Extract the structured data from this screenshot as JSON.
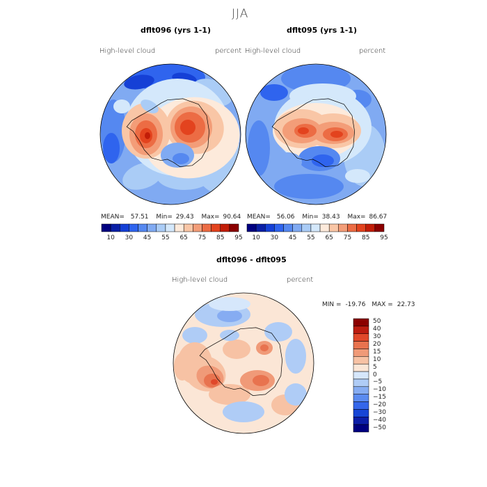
{
  "title": "JJA",
  "colors": {
    "abs_scale": [
      "#000080",
      "#0a1fa6",
      "#1540d6",
      "#2f64ee",
      "#5588f0",
      "#80aaf2",
      "#aaccf6",
      "#d4e8fb",
      "#fdeadb",
      "#f9c6a6",
      "#f39d78",
      "#ec6c44",
      "#e3431e",
      "#c21d08",
      "#8b0000"
    ],
    "diff_scale": [
      "#000080",
      "#0c1ea8",
      "#1746d6",
      "#3466ea",
      "#5b8bf0",
      "#86acf2",
      "#afccf6",
      "#d6e7fb",
      "#fbe6d6",
      "#f7c2a4",
      "#f09a78",
      "#e8734f",
      "#e0482a",
      "#bc1c10",
      "#8b0000"
    ]
  },
  "chart_data": [
    {
      "type": "heatmap",
      "panel": "left",
      "title": "dflt096 (yrs 1-1)",
      "variable": "High-level  cloud",
      "units": "percent",
      "stats": {
        "mean_label": "MEAN=",
        "mean": "57.51",
        "min_label": "Min=",
        "min": "29.43",
        "max_label": "Max=",
        "max": "90.64"
      },
      "colorbar_ticks": [
        "10",
        "30",
        "45",
        "55",
        "65",
        "75",
        "85",
        "95"
      ],
      "colorbar_bins": 15
    },
    {
      "type": "heatmap",
      "panel": "right",
      "title": "dflt095 (yrs 1-1)",
      "variable": "High-level  cloud",
      "units": "percent",
      "stats": {
        "mean_label": "MEAN=",
        "mean": "56.06",
        "min_label": "Min=",
        "min": "38.43",
        "max_label": "Max=",
        "max": "86.67"
      },
      "colorbar_ticks": [
        "10",
        "30",
        "45",
        "55",
        "65",
        "75",
        "85",
        "95"
      ],
      "colorbar_bins": 15
    },
    {
      "type": "heatmap",
      "panel": "difference",
      "title": "dflt096 - dflt095",
      "variable": "High-level  cloud",
      "units": "percent",
      "stats": {
        "min_label": "MIN =",
        "min": "-19.76",
        "max_label": "MAX =",
        "max": "22.73"
      },
      "colorbar_levels": [
        "50",
        "40",
        "30",
        "20",
        "15",
        "10",
        "5",
        "0",
        "−5",
        "−10",
        "−15",
        "−20",
        "−30",
        "−40",
        "−50"
      ]
    }
  ]
}
